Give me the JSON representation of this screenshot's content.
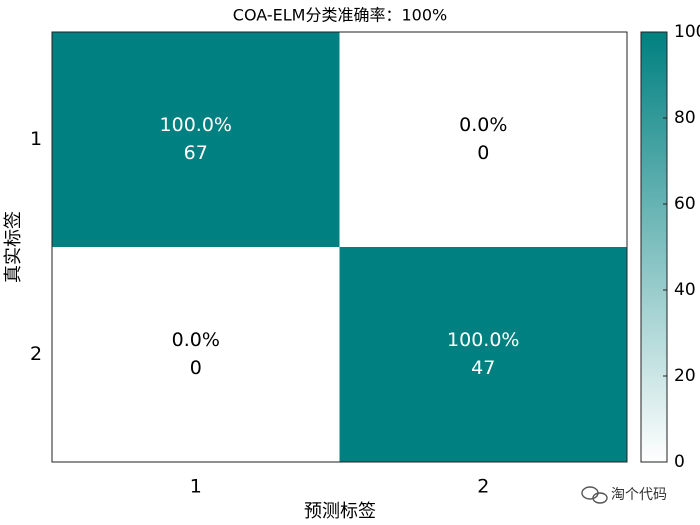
{
  "chart_data": {
    "type": "heatmap",
    "title": "COA-ELM分类准确率：100%",
    "xlabel": "预测标签",
    "ylabel": "真实标签",
    "x_categories": [
      "1",
      "2"
    ],
    "y_categories": [
      "1",
      "2"
    ],
    "values": [
      [
        100,
        0
      ],
      [
        0,
        100
      ]
    ],
    "value_labels": [
      [
        "100.0%",
        "0.0%"
      ],
      [
        "0.0%",
        "100.0%"
      ]
    ],
    "counts": [
      [
        67,
        0
      ],
      [
        0,
        47
      ]
    ],
    "color_low": "#ffffff",
    "color_high": "#008080",
    "colorbar_lim": [
      0,
      100
    ],
    "colorbar_ticks": [
      0,
      20,
      40,
      60,
      80,
      100
    ],
    "watermark": "淘个代码"
  }
}
